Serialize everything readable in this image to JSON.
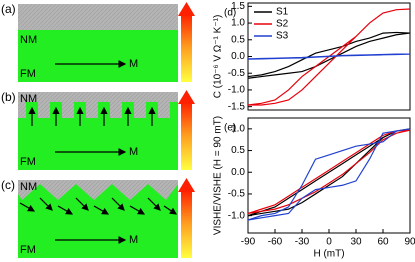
{
  "diagrams": [
    {
      "panel_label": "(a)",
      "top_layer": "NM",
      "bottom_layer": "FM",
      "magnetization": "M"
    },
    {
      "panel_label": "(b)",
      "top_layer": "NM",
      "bottom_layer": "FM",
      "magnetization": "M"
    },
    {
      "panel_label": "(c)",
      "top_layer": "NM",
      "bottom_layer": "FM",
      "magnetization": "M"
    }
  ],
  "chart_data": [
    {
      "type": "line",
      "panel_label": "(d)",
      "ylabel": "C (10⁻⁶ V Ω⁻¹ K⁻¹)",
      "x": [
        -90,
        -75,
        -60,
        -45,
        -30,
        -15,
        0,
        15,
        30,
        45,
        60,
        75,
        90,
        75,
        60,
        45,
        30,
        15,
        0,
        -15,
        -30,
        -45,
        -60,
        -75,
        -90
      ],
      "xlim": [
        -90,
        90
      ],
      "ylim": [
        -1.6,
        1.6
      ],
      "yticks": [
        1.5,
        {
          "value": 1,
          "label": "1.0"
        },
        0.5,
        {
          "value": 0,
          "label": "0.0"
        },
        -0.5,
        {
          "value": -1,
          "label": "-1.0"
        },
        -1.5
      ],
      "series": [
        {
          "name": "S1",
          "color": "#000000",
          "values": [
            -0.65,
            -0.6,
            -0.55,
            -0.5,
            -0.45,
            -0.3,
            -0.1,
            0.1,
            0.3,
            0.45,
            0.55,
            0.65,
            0.7,
            0.72,
            0.7,
            0.55,
            0.45,
            0.3,
            0.2,
            0.1,
            -0.1,
            -0.3,
            -0.45,
            -0.55,
            -0.6
          ]
        },
        {
          "name": "S2",
          "color": "#e8000b",
          "values": [
            -1.45,
            -1.45,
            -1.4,
            -1.3,
            -1.0,
            -0.6,
            -0.2,
            0.2,
            0.6,
            1.0,
            1.3,
            1.4,
            1.42,
            1.4,
            1.3,
            1.0,
            0.6,
            0.3,
            0,
            -0.3,
            -0.6,
            -1.0,
            -1.3,
            -1.4,
            -1.45
          ]
        },
        {
          "name": "S3",
          "color": "#2040d0",
          "values": [
            -0.08,
            -0.07,
            -0.06,
            -0.05,
            -0.04,
            -0.02,
            0,
            0.02,
            0.03,
            0.04,
            0.05,
            0.06,
            0.07,
            0.07,
            0.06,
            0.05,
            0.04,
            0.03,
            0.01,
            -0.01,
            -0.03,
            -0.04,
            -0.05,
            -0.06,
            -0.07
          ]
        }
      ]
    },
    {
      "type": "line",
      "panel_label": "(e)",
      "ylabel": "VISHE/VISHE (H = 90 mT)",
      "xlabel": "H (mT)",
      "x": [
        -90,
        -75,
        -60,
        -45,
        -30,
        -15,
        0,
        15,
        30,
        45,
        60,
        75,
        90,
        75,
        60,
        45,
        30,
        15,
        0,
        -15,
        -30,
        -45,
        -60,
        -75,
        -90
      ],
      "xlim": [
        -90,
        90
      ],
      "ylim": [
        -1.4,
        1.25
      ],
      "xticks": [
        -90,
        -60,
        -30,
        0,
        30,
        60,
        90
      ],
      "yticks": [
        {
          "value": 1,
          "label": "1.0"
        },
        0.5,
        {
          "value": 0,
          "label": "0.0"
        },
        -0.5,
        {
          "value": -1,
          "label": "-1.0"
        }
      ],
      "series": [
        {
          "name": "S1",
          "color": "#000000",
          "values": [
            -1.0,
            -0.95,
            -0.9,
            -0.85,
            -0.7,
            -0.5,
            -0.3,
            -0.1,
            0.2,
            0.5,
            0.8,
            0.95,
            1.0,
            0.95,
            0.8,
            0.6,
            0.4,
            0.2,
            0,
            -0.2,
            -0.4,
            -0.6,
            -0.8,
            -0.9,
            -1.0
          ]
        },
        {
          "name": "S2",
          "color": "#e8000b",
          "values": [
            -0.95,
            -0.9,
            -0.85,
            -0.75,
            -0.6,
            -0.45,
            -0.25,
            -0.05,
            0.2,
            0.45,
            0.75,
            0.9,
            0.97,
            0.95,
            0.85,
            0.65,
            0.45,
            0.25,
            0.05,
            -0.15,
            -0.35,
            -0.55,
            -0.75,
            -0.85,
            -0.95
          ]
        },
        {
          "name": "S3",
          "color": "#2040d0",
          "values": [
            -1.1,
            -1.05,
            -1.0,
            -0.95,
            -0.6,
            -0.4,
            -0.35,
            -0.3,
            -0.2,
            0.3,
            0.9,
            0.95,
            1.0,
            0.95,
            0.7,
            0.65,
            0.6,
            0.5,
            0.4,
            0.3,
            -0.3,
            -0.8,
            -0.95,
            -1.0,
            -1.1
          ]
        }
      ]
    }
  ]
}
